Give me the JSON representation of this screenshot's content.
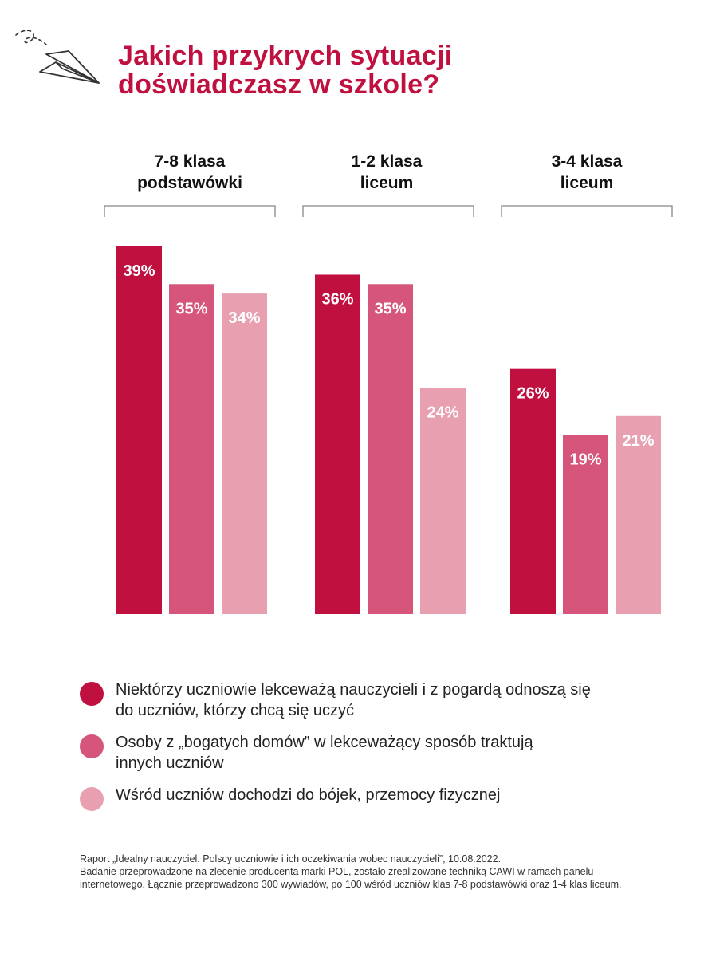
{
  "title": {
    "line1": "Jakich przykrych sytuacji",
    "line2": "doświadczasz w szkole?"
  },
  "colors": {
    "accent": "#c0103f",
    "series1": "#c0103f",
    "series2": "#d5567a",
    "series3": "#e8a0b1",
    "text": "#222222",
    "bracket": "#888888"
  },
  "chart_data": {
    "type": "bar",
    "title": "Jakich przykrych sytuacji doświadczasz w szkole?",
    "categories": [
      "7-8 klasa podstawówki",
      "1-2 klasa liceum",
      "3-4 klasa liceum"
    ],
    "category_lines": [
      [
        "7-8 klasa",
        "podstawówki"
      ],
      [
        "1-2 klasa",
        "liceum"
      ],
      [
        "3-4 klasa",
        "liceum"
      ]
    ],
    "series": [
      {
        "name": "Niektórzy uczniowie lekceważą nauczycieli i z pogardą odnoszą się do uczniów, którzy chcą się uczyć",
        "values": [
          39,
          36,
          26
        ],
        "labels": [
          "39%",
          "36%",
          "26%"
        ]
      },
      {
        "name": "Osoby z „bogatych domów” w lekceważący sposób traktują innych uczniów",
        "values": [
          35,
          35,
          19
        ],
        "labels": [
          "35%",
          "35%",
          "19%"
        ]
      },
      {
        "name": "Wśród uczniów dochodzi do bójek, przemocy fizycznej",
        "values": [
          34,
          24,
          21
        ],
        "labels": [
          "34%",
          "24%",
          "21%"
        ]
      }
    ],
    "unit": "%",
    "ylim": [
      0,
      39
    ],
    "xlabel": "",
    "ylabel": "",
    "grid": false,
    "legend_position": "bottom"
  },
  "legend": [
    {
      "lines": [
        "Niektórzy uczniowie lekceważą nauczycieli i z pogardą odnoszą się",
        "do uczniów, którzy chcą się uczyć"
      ]
    },
    {
      "lines": [
        "Osoby z „bogatych domów” w lekceważący sposób traktują",
        "innych uczniów"
      ]
    },
    {
      "lines": [
        "Wśród uczniów dochodzi do bójek, przemocy fizycznej"
      ]
    }
  ],
  "footnote": {
    "line1": "Raport „Idealny nauczyciel. Polscy uczniowie i ich oczekiwania wobec nauczycieli”, 10.08.2022.",
    "line2": "Badanie przeprowadzone na zlecenie producenta marki POL, zostało zrealizowane techniką CAWI w ramach panelu",
    "line3": "internetowego. Łącznie przeprowadzono 300 wywiadów, po 100 wśród uczniów klas 7-8 podstawówki oraz 1-4 klas liceum."
  }
}
